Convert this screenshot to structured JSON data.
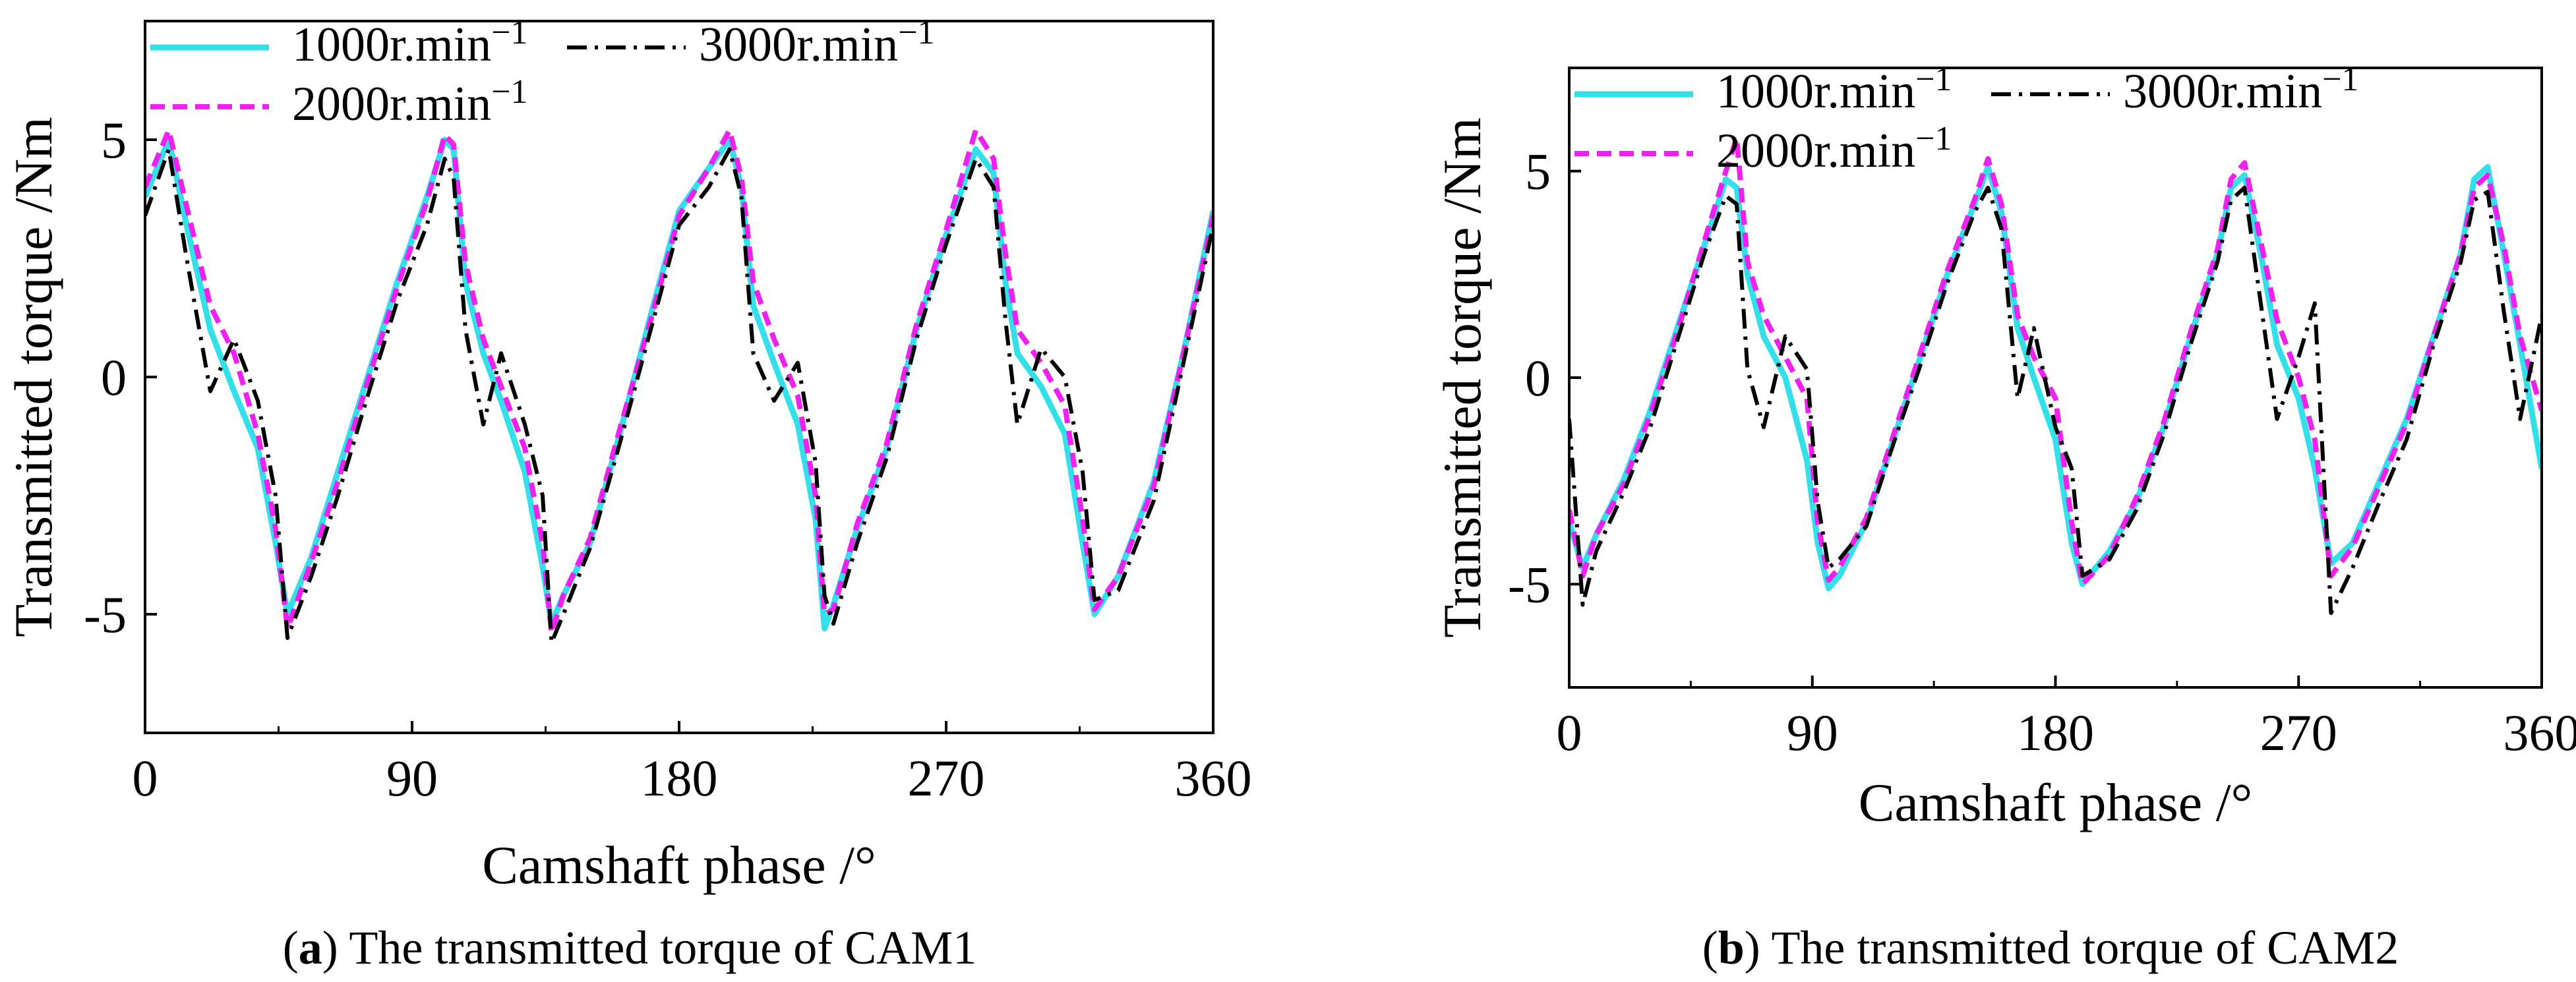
{
  "figure": {
    "panels": [
      {
        "caption_letter": "a",
        "caption_text": "The transmitted torque of CAM1"
      },
      {
        "caption_letter": "b",
        "caption_text": "The transmitted torque of CAM2"
      }
    ]
  },
  "chart_data": [
    {
      "type": "line",
      "title": "",
      "xlabel": "Camshaft phase /°",
      "ylabel": "Transmitted torque /Nm",
      "xlim": [
        0,
        360
      ],
      "ylim": [
        -7.5,
        7.5
      ],
      "xticks": [
        0,
        90,
        180,
        270,
        360
      ],
      "xtick_labels": [
        "0",
        "90",
        "180",
        "270",
        "360"
      ],
      "yticks": [
        -5,
        0,
        5
      ],
      "ytick_labels": [
        "-5",
        "0",
        "5"
      ],
      "legend_position": "top-left",
      "series": [
        {
          "name": "1000r.min⁻¹",
          "color": "#33e0e8",
          "style": "solid",
          "x": [
            0,
            8,
            14,
            22,
            30,
            38,
            44,
            48,
            56,
            65,
            75,
            85,
            95,
            101,
            104,
            108,
            114,
            120,
            128,
            134,
            137,
            141,
            150,
            160,
            170,
            180,
            190,
            197,
            201,
            205,
            212,
            220,
            226,
            229,
            232,
            240,
            250,
            260,
            270,
            280,
            286,
            290,
            294,
            302,
            310,
            316,
            320,
            328,
            340,
            350,
            360
          ],
          "y": [
            3.8,
            5.0,
            3.2,
            1.0,
            -0.3,
            -1.5,
            -3.5,
            -5.0,
            -3.8,
            -2.0,
            0.0,
            2.0,
            3.8,
            5.0,
            4.8,
            2.0,
            0.5,
            -0.5,
            -2.0,
            -4.0,
            -5.2,
            -4.6,
            -3.5,
            -1.2,
            1.2,
            3.5,
            4.4,
            5.0,
            4.0,
            1.5,
            0.3,
            -1.0,
            -3.0,
            -5.3,
            -4.8,
            -3.2,
            -1.5,
            1.0,
            3.0,
            4.8,
            4.3,
            2.0,
            0.5,
            -0.2,
            -1.2,
            -3.5,
            -5.0,
            -4.2,
            -2.2,
            0.5,
            3.5
          ]
        },
        {
          "name": "2000r.min⁻¹",
          "color": "#ee22ee",
          "style": "dashed",
          "x": [
            0,
            8,
            14,
            22,
            30,
            38,
            44,
            48,
            56,
            65,
            75,
            85,
            95,
            101,
            104,
            108,
            114,
            120,
            128,
            134,
            137,
            141,
            150,
            160,
            170,
            180,
            190,
            197,
            201,
            205,
            212,
            220,
            226,
            229,
            232,
            240,
            250,
            260,
            270,
            280,
            286,
            290,
            294,
            302,
            310,
            316,
            320,
            328,
            340,
            350,
            360
          ],
          "y": [
            4.0,
            5.2,
            3.6,
            1.5,
            0.5,
            -1.2,
            -3.2,
            -5.3,
            -3.9,
            -2.2,
            -0.1,
            1.9,
            3.7,
            5.1,
            4.9,
            2.4,
            0.8,
            -0.2,
            -1.5,
            -3.5,
            -5.4,
            -4.6,
            -3.4,
            -1.1,
            1.1,
            3.4,
            4.4,
            5.2,
            4.2,
            2.0,
            0.8,
            -0.4,
            -2.5,
            -5.0,
            -4.9,
            -3.1,
            -1.4,
            1.1,
            3.1,
            5.2,
            4.6,
            2.6,
            1.0,
            0.3,
            -0.6,
            -3.0,
            -4.9,
            -4.2,
            -2.3,
            0.5,
            3.4
          ]
        },
        {
          "name": "3000r.min⁻¹",
          "color": "#000000",
          "style": "dash-dot",
          "x": [
            0,
            8,
            14,
            22,
            30,
            38,
            44,
            48,
            56,
            65,
            75,
            85,
            95,
            101,
            104,
            108,
            114,
            120,
            128,
            134,
            137,
            141,
            150,
            160,
            170,
            180,
            190,
            197,
            201,
            205,
            212,
            220,
            226,
            229,
            232,
            240,
            250,
            260,
            270,
            280,
            286,
            290,
            294,
            302,
            310,
            316,
            320,
            328,
            340,
            350,
            360
          ],
          "y": [
            3.4,
            4.8,
            2.5,
            -0.3,
            0.8,
            -0.5,
            -2.5,
            -5.5,
            -4.2,
            -2.5,
            -0.4,
            1.6,
            3.2,
            4.6,
            4.2,
            1.0,
            -1.0,
            0.5,
            -1.0,
            -2.5,
            -5.6,
            -5.0,
            -3.6,
            -1.4,
            0.9,
            3.2,
            4.0,
            4.8,
            3.8,
            0.5,
            -0.5,
            0.3,
            -1.8,
            -4.6,
            -5.2,
            -3.5,
            -1.7,
            0.8,
            2.8,
            4.6,
            4.0,
            1.2,
            -1.0,
            0.6,
            0.0,
            -2.0,
            -4.7,
            -4.5,
            -2.6,
            0.3,
            3.2
          ]
        }
      ]
    },
    {
      "type": "line",
      "title": "",
      "xlabel": "Camshaft phase /°",
      "ylabel": "Transmitted torque /Nm",
      "xlim": [
        0,
        360
      ],
      "ylim": [
        -7.5,
        7.5
      ],
      "xticks": [
        0,
        90,
        180,
        270,
        360
      ],
      "xtick_labels": [
        "0",
        "90",
        "180",
        "270",
        "360"
      ],
      "yticks": [
        -5,
        0,
        5
      ],
      "ytick_labels": [
        "-5",
        "0",
        "5"
      ],
      "legend_position": "top-left",
      "series": [
        {
          "name": "1000r.min⁻¹",
          "color": "#33e0e8",
          "style": "solid",
          "x": [
            0,
            5,
            10,
            20,
            30,
            40,
            50,
            58,
            62,
            66,
            72,
            80,
            88,
            92,
            96,
            100,
            110,
            120,
            130,
            140,
            150,
            155,
            160,
            166,
            172,
            180,
            186,
            190,
            200,
            210,
            220,
            230,
            240,
            245,
            250,
            256,
            262,
            270,
            276,
            282,
            290,
            300,
            310,
            320,
            330,
            335,
            340,
            346,
            352,
            360
          ],
          "y": [
            -3.5,
            -4.6,
            -3.8,
            -2.5,
            -0.8,
            1.2,
            3.2,
            4.8,
            4.6,
            2.5,
            1.0,
            0.0,
            -2.0,
            -4.0,
            -5.1,
            -4.8,
            -3.5,
            -1.5,
            0.5,
            2.5,
            4.2,
            5.1,
            4.0,
            1.2,
            0.0,
            -1.5,
            -4.0,
            -5.0,
            -4.2,
            -3.0,
            -1.2,
            1.0,
            3.0,
            4.6,
            4.9,
            3.0,
            0.8,
            -0.5,
            -2.2,
            -4.5,
            -4.0,
            -2.5,
            -1.0,
            1.0,
            3.0,
            4.8,
            5.1,
            3.0,
            0.8,
            -2.2
          ]
        },
        {
          "name": "2000r.min⁻¹",
          "color": "#ee22ee",
          "style": "dashed",
          "x": [
            0,
            5,
            10,
            20,
            30,
            40,
            50,
            58,
            62,
            66,
            72,
            80,
            88,
            92,
            96,
            100,
            110,
            120,
            130,
            140,
            150,
            155,
            160,
            166,
            172,
            180,
            186,
            190,
            200,
            210,
            220,
            230,
            240,
            245,
            250,
            256,
            262,
            270,
            276,
            282,
            290,
            300,
            310,
            320,
            330,
            335,
            340,
            346,
            352,
            360
          ],
          "y": [
            -3.2,
            -4.8,
            -3.8,
            -2.6,
            -0.9,
            1.1,
            3.3,
            5.0,
            5.8,
            2.8,
            1.5,
            0.5,
            -0.5,
            -3.5,
            -4.9,
            -4.6,
            -3.4,
            -1.4,
            0.6,
            2.6,
            4.3,
            5.3,
            4.2,
            1.5,
            0.5,
            -0.5,
            -3.5,
            -5.0,
            -4.3,
            -2.9,
            -1.1,
            1.1,
            3.1,
            4.8,
            5.2,
            3.3,
            1.4,
            0.0,
            -1.5,
            -4.8,
            -4.1,
            -2.6,
            -1.1,
            1.0,
            3.0,
            4.6,
            4.9,
            3.2,
            1.0,
            -0.8
          ]
        },
        {
          "name": "3000r.min⁻¹",
          "color": "#000000",
          "style": "dash-dot",
          "x": [
            0,
            5,
            10,
            20,
            30,
            40,
            50,
            58,
            62,
            66,
            72,
            80,
            88,
            92,
            96,
            100,
            110,
            120,
            130,
            140,
            150,
            155,
            160,
            166,
            172,
            180,
            186,
            190,
            200,
            210,
            220,
            230,
            240,
            245,
            250,
            256,
            262,
            270,
            276,
            282,
            290,
            300,
            310,
            320,
            330,
            335,
            340,
            346,
            352,
            360
          ],
          "y": [
            -1.0,
            -5.5,
            -4.2,
            -2.8,
            -1.2,
            0.9,
            3.0,
            4.4,
            4.2,
            0.2,
            -1.2,
            1.0,
            0.2,
            -3.0,
            -4.6,
            -4.4,
            -3.6,
            -1.6,
            0.3,
            2.3,
            4.0,
            4.6,
            3.6,
            -0.5,
            1.2,
            -1.2,
            -2.2,
            -4.8,
            -4.4,
            -3.2,
            -1.4,
            0.8,
            2.8,
            4.3,
            4.6,
            1.8,
            -1.0,
            0.5,
            1.8,
            -5.7,
            -4.6,
            -3.0,
            -1.5,
            0.8,
            2.8,
            4.3,
            4.5,
            1.6,
            -1.0,
            1.5
          ]
        }
      ]
    }
  ]
}
